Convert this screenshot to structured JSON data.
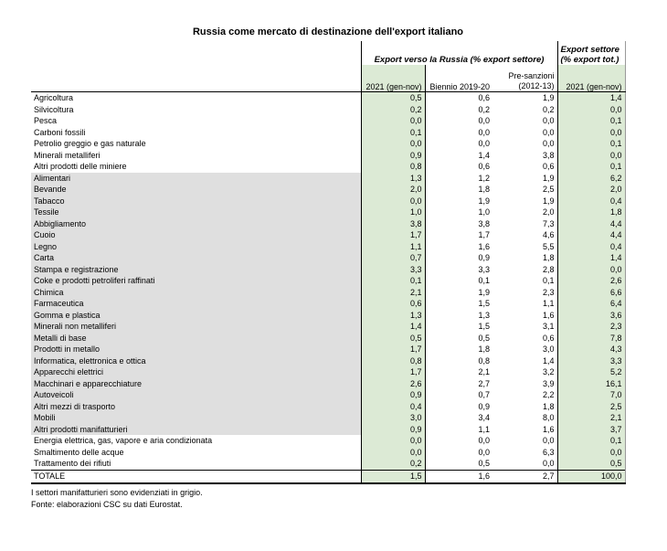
{
  "title": "Russia come mercato di destinazione dell'export italiano",
  "table": {
    "group_header": "Export verso la Russia (% export settore)",
    "right_header_line1": "Export settore",
    "right_header_line2": "(% export tot.)",
    "subheaders": {
      "col1": "2021 (gen-nov)",
      "col2": "Biennio 2019-20",
      "col3_line1": "Pre-sanzioni",
      "col3_line2": "(2012-13)",
      "col4": "2021 (gen-nov)"
    },
    "rows": [
      {
        "label": "Agricoltura",
        "values": [
          "0,5",
          "0,6",
          "1,9",
          "1,4"
        ],
        "grey": false
      },
      {
        "label": "Silvicoltura",
        "values": [
          "0,2",
          "0,2",
          "0,2",
          "0,0"
        ],
        "grey": false
      },
      {
        "label": "Pesca",
        "values": [
          "0,0",
          "0,0",
          "0,0",
          "0,1"
        ],
        "grey": false
      },
      {
        "label": "Carboni fossili",
        "values": [
          "0,1",
          "0,0",
          "0,0",
          "0,0"
        ],
        "grey": false
      },
      {
        "label": "Petrolio greggio e gas naturale",
        "values": [
          "0,0",
          "0,0",
          "0,0",
          "0,1"
        ],
        "grey": false
      },
      {
        "label": "Minerali metalliferi",
        "values": [
          "0,9",
          "1,4",
          "3,8",
          "0,0"
        ],
        "grey": false
      },
      {
        "label": "Altri prodotti delle miniere",
        "values": [
          "0,8",
          "0,6",
          "0,6",
          "0,1"
        ],
        "grey": false
      },
      {
        "label": "Alimentari",
        "values": [
          "1,3",
          "1,2",
          "1,9",
          "6,2"
        ],
        "grey": true
      },
      {
        "label": "Bevande",
        "values": [
          "2,0",
          "1,8",
          "2,5",
          "2,0"
        ],
        "grey": true
      },
      {
        "label": "Tabacco",
        "values": [
          "0,0",
          "1,9",
          "1,9",
          "0,4"
        ],
        "grey": true
      },
      {
        "label": "Tessile",
        "values": [
          "1,0",
          "1,0",
          "2,0",
          "1,8"
        ],
        "grey": true
      },
      {
        "label": "Abbigliamento",
        "values": [
          "3,8",
          "3,8",
          "7,3",
          "4,4"
        ],
        "grey": true
      },
      {
        "label": "Cuoio",
        "values": [
          "1,7",
          "1,7",
          "4,6",
          "4,4"
        ],
        "grey": true
      },
      {
        "label": "Legno",
        "values": [
          "1,1",
          "1,6",
          "5,5",
          "0,4"
        ],
        "grey": true
      },
      {
        "label": "Carta",
        "values": [
          "0,7",
          "0,9",
          "1,8",
          "1,4"
        ],
        "grey": true
      },
      {
        "label": "Stampa e registrazione",
        "values": [
          "3,3",
          "3,3",
          "2,8",
          "0,0"
        ],
        "grey": true
      },
      {
        "label": "Coke e prodotti petroliferi raffinati",
        "values": [
          "0,1",
          "0,1",
          "0,1",
          "2,6"
        ],
        "grey": true
      },
      {
        "label": "Chimica",
        "values": [
          "2,1",
          "1,9",
          "2,3",
          "6,6"
        ],
        "grey": true
      },
      {
        "label": "Farmaceutica",
        "values": [
          "0,6",
          "1,5",
          "1,1",
          "6,4"
        ],
        "grey": true
      },
      {
        "label": "Gomma e plastica",
        "values": [
          "1,3",
          "1,3",
          "1,6",
          "3,6"
        ],
        "grey": true
      },
      {
        "label": "Minerali non metalliferi",
        "values": [
          "1,4",
          "1,5",
          "3,1",
          "2,3"
        ],
        "grey": true
      },
      {
        "label": "Metalli di base",
        "values": [
          "0,5",
          "0,5",
          "0,6",
          "7,8"
        ],
        "grey": true
      },
      {
        "label": "Prodotti in metallo",
        "values": [
          "1,7",
          "1,8",
          "3,0",
          "4,3"
        ],
        "grey": true
      },
      {
        "label": "Informatica, elettronica e ottica",
        "values": [
          "0,8",
          "0,8",
          "1,4",
          "3,3"
        ],
        "grey": true
      },
      {
        "label": "Apparecchi elettrici",
        "values": [
          "1,7",
          "2,1",
          "3,2",
          "5,2"
        ],
        "grey": true
      },
      {
        "label": "Macchinari e apparecchiature",
        "values": [
          "2,6",
          "2,7",
          "3,9",
          "16,1"
        ],
        "grey": true
      },
      {
        "label": "Autoveicoli",
        "values": [
          "0,9",
          "0,7",
          "2,2",
          "7,0"
        ],
        "grey": true
      },
      {
        "label": "Altri mezzi di trasporto",
        "values": [
          "0,4",
          "0,9",
          "1,8",
          "2,5"
        ],
        "grey": true
      },
      {
        "label": "Mobili",
        "values": [
          "3,0",
          "3,4",
          "8,0",
          "2,1"
        ],
        "grey": true
      },
      {
        "label": "Altri prodotti manifatturieri",
        "values": [
          "0,9",
          "1,1",
          "1,6",
          "3,7"
        ],
        "grey": true
      },
      {
        "label": "Energia elettrica, gas, vapore e aria condizionata",
        "values": [
          "0,0",
          "0,0",
          "0,0",
          "0,1"
        ],
        "grey": false
      },
      {
        "label": "Smaltimento delle acque",
        "values": [
          "0,0",
          "0,0",
          "6,3",
          "0,0"
        ],
        "grey": false
      },
      {
        "label": "Trattamento dei rifiuti",
        "values": [
          "0,2",
          "0,5",
          "0,0",
          "0,5"
        ],
        "grey": false
      }
    ],
    "total_row": {
      "label": "TOTALE",
      "values": [
        "1,5",
        "1,6",
        "2,7",
        "100,0"
      ]
    }
  },
  "footnotes": [
    "I settori manifatturieri sono evidenziati in grigio.",
    "Fonte: elaborazioni CSC su dati Eurostat."
  ],
  "colors": {
    "green_highlight": "#dcead5",
    "grey_highlight": "#dfdfdf"
  },
  "chart_data": {
    "type": "table",
    "title": "Russia come mercato di destinazione dell'export italiano",
    "column_groups": [
      "Export verso la Russia (% export settore)",
      "Export settore (% export tot.)"
    ],
    "columns": [
      "2021 (gen-nov)",
      "Biennio 2019-20",
      "Pre-sanzioni (2012-13)",
      "2021 (gen-nov)"
    ],
    "categories": [
      "Agricoltura",
      "Silvicoltura",
      "Pesca",
      "Carboni fossili",
      "Petrolio greggio e gas naturale",
      "Minerali metalliferi",
      "Altri prodotti delle miniere",
      "Alimentari",
      "Bevande",
      "Tabacco",
      "Tessile",
      "Abbigliamento",
      "Cuoio",
      "Legno",
      "Carta",
      "Stampa e registrazione",
      "Coke e prodotti petroliferi raffinati",
      "Chimica",
      "Farmaceutica",
      "Gomma e plastica",
      "Minerali non metalliferi",
      "Metalli di base",
      "Prodotti in metallo",
      "Informatica, elettronica e ottica",
      "Apparecchi elettrici",
      "Macchinari e apparecchiature",
      "Autoveicoli",
      "Altri mezzi di trasporto",
      "Mobili",
      "Altri prodotti manifatturieri",
      "Energia elettrica, gas, vapore e aria condizionata",
      "Smaltimento delle acque",
      "Trattamento dei rifiuti",
      "TOTALE"
    ],
    "series": [
      {
        "name": "2021 (gen-nov) - export verso Russia",
        "values": [
          0.5,
          0.2,
          0.0,
          0.1,
          0.0,
          0.9,
          0.8,
          1.3,
          2.0,
          0.0,
          1.0,
          3.8,
          1.7,
          1.1,
          0.7,
          3.3,
          0.1,
          2.1,
          0.6,
          1.3,
          1.4,
          0.5,
          1.7,
          0.8,
          1.7,
          2.6,
          0.9,
          0.4,
          3.0,
          0.9,
          0.0,
          0.0,
          0.2,
          1.5
        ]
      },
      {
        "name": "Biennio 2019-20",
        "values": [
          0.6,
          0.2,
          0.0,
          0.0,
          0.0,
          1.4,
          0.6,
          1.2,
          1.8,
          1.9,
          1.0,
          3.8,
          1.7,
          1.6,
          0.9,
          3.3,
          0.1,
          1.9,
          1.5,
          1.3,
          1.5,
          0.5,
          1.8,
          0.8,
          2.1,
          2.7,
          0.7,
          0.9,
          3.4,
          1.1,
          0.0,
          0.0,
          0.5,
          1.6
        ]
      },
      {
        "name": "Pre-sanzioni (2012-13)",
        "values": [
          1.9,
          0.2,
          0.0,
          0.0,
          0.0,
          3.8,
          0.6,
          1.9,
          2.5,
          1.9,
          2.0,
          7.3,
          4.6,
          5.5,
          1.8,
          2.8,
          0.1,
          2.3,
          1.1,
          1.6,
          3.1,
          0.6,
          3.0,
          1.4,
          3.2,
          3.9,
          2.2,
          1.8,
          8.0,
          1.6,
          0.0,
          6.3,
          0.0,
          2.7
        ]
      },
      {
        "name": "Export settore (% export tot.) 2021 (gen-nov)",
        "values": [
          1.4,
          0.0,
          0.1,
          0.0,
          0.1,
          0.0,
          0.1,
          6.2,
          2.0,
          0.4,
          1.8,
          4.4,
          4.4,
          0.4,
          1.4,
          0.0,
          2.6,
          6.6,
          6.4,
          3.6,
          2.3,
          7.8,
          4.3,
          3.3,
          5.2,
          16.1,
          7.0,
          2.5,
          2.1,
          3.7,
          0.1,
          0.0,
          0.5,
          100.0
        ]
      }
    ],
    "notes": [
      "I settori manifatturieri sono evidenziati in grigio.",
      "Fonte: elaborazioni CSC su dati Eurostat."
    ]
  }
}
